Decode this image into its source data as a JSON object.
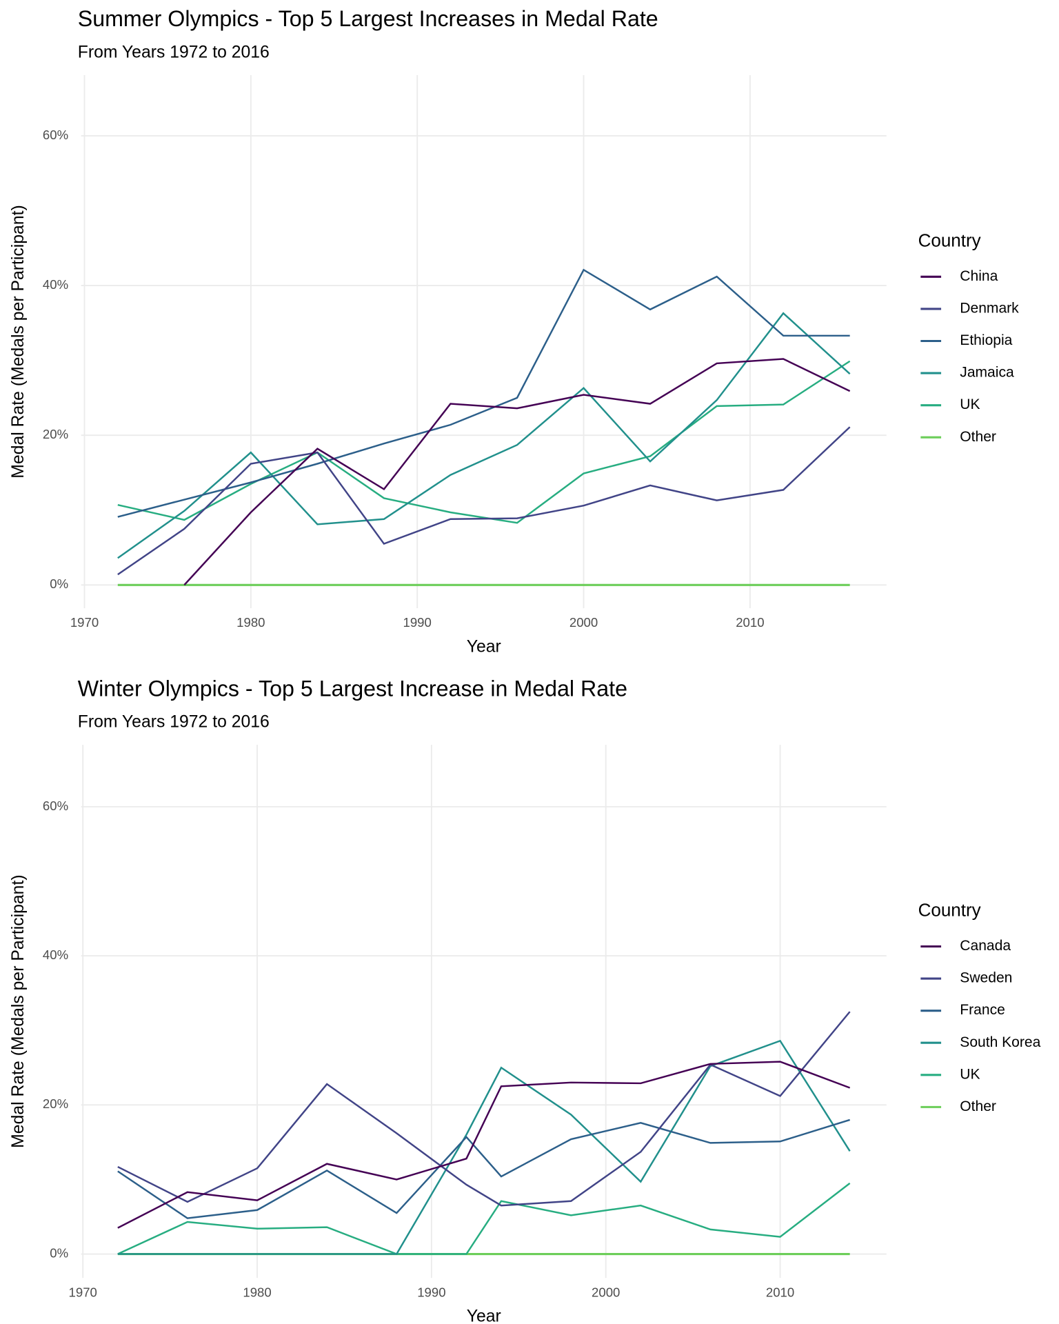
{
  "chart_data": [
    {
      "type": "line",
      "title": "Summer Olympics - Top 5 Largest Increases in Medal Rate",
      "subtitle": "From Years 1972 to 2016",
      "x_label": "Year",
      "y_label": "Medal Rate (Medals per Participant)",
      "legend_title": "Country",
      "legend": "right",
      "grid": true,
      "x": [
        1972,
        1976,
        1980,
        1984,
        1988,
        1992,
        1996,
        2000,
        2004,
        2008,
        2012,
        2016
      ],
      "xlim": [
        1969.8,
        2018.2
      ],
      "xticks": [
        1970,
        1980,
        1990,
        2000,
        2010
      ],
      "ylim": [
        -3.1,
        68.1
      ],
      "yticks": [
        {
          "value": 0,
          "label": "0%"
        },
        {
          "value": 20,
          "label": "20%"
        },
        {
          "value": 40,
          "label": "40%"
        },
        {
          "value": 60,
          "label": "60%"
        }
      ],
      "series": [
        {
          "name": "China",
          "color": "#440154",
          "values": [
            null,
            0,
            9.7,
            18.2,
            12.8,
            24.2,
            23.6,
            25.4,
            24.2,
            29.6,
            30.2,
            25.9
          ]
        },
        {
          "name": "Denmark",
          "color": "#414487",
          "values": [
            1.4,
            7.5,
            16.2,
            17.7,
            5.5,
            8.8,
            8.9,
            10.6,
            13.3,
            11.3,
            12.7,
            21.1
          ]
        },
        {
          "name": "Ethiopia",
          "color": "#2c5f8a",
          "values": [
            9.1,
            11.4,
            13.7,
            16.2,
            18.9,
            21.4,
            25,
            42.1,
            36.8,
            41.2,
            33.3,
            33.3
          ]
        },
        {
          "name": "Jamaica",
          "color": "#21908c",
          "values": [
            3.6,
            9.9,
            17.7,
            8.1,
            8.8,
            14.7,
            18.7,
            26.3,
            16.5,
            24.7,
            36.3,
            28.2
          ]
        },
        {
          "name": "UK",
          "color": "#27ad81",
          "values": [
            10.7,
            8.7,
            13.5,
            17.7,
            11.6,
            9.7,
            8.3,
            14.9,
            17.2,
            23.9,
            24.1,
            29.9
          ]
        },
        {
          "name": "Other",
          "color": "#6cce59",
          "values": [
            0,
            0,
            0,
            0,
            0,
            0,
            0,
            0,
            0,
            0,
            0,
            0
          ]
        }
      ]
    },
    {
      "type": "line",
      "title": "Winter Olympics - Top 5 Largest Increase in Medal Rate",
      "subtitle": "From Years 1972 to 2016",
      "x_label": "Year",
      "y_label": "Medal Rate (Medals per Participant)",
      "legend_title": "Country",
      "legend": "right",
      "grid": true,
      "x": [
        1972,
        1976,
        1980,
        1984,
        1988,
        1992,
        1994,
        1998,
        2002,
        2006,
        2010,
        2014
      ],
      "xlim": [
        1969.9,
        2016.1
      ],
      "xticks": [
        1970,
        1980,
        1990,
        2000,
        2010
      ],
      "ylim": [
        -3.2,
        68.3
      ],
      "yticks": [
        {
          "value": 0,
          "label": "0%"
        },
        {
          "value": 20,
          "label": "20%"
        },
        {
          "value": 40,
          "label": "40%"
        },
        {
          "value": 60,
          "label": "60%"
        }
      ],
      "series": [
        {
          "name": "Canada",
          "color": "#440154",
          "values": [
            3.5,
            8.3,
            7.2,
            12.1,
            10,
            12.8,
            22.5,
            23,
            22.9,
            25.5,
            25.8,
            22.3
          ]
        },
        {
          "name": "Sweden",
          "color": "#414487",
          "values": [
            11.7,
            7,
            11.5,
            22.8,
            16.2,
            9.3,
            6.5,
            7.1,
            13.7,
            25.4,
            21.2,
            32.5
          ]
        },
        {
          "name": "France",
          "color": "#2c5f8a",
          "values": [
            11.1,
            4.8,
            5.9,
            11.2,
            5.5,
            15.7,
            10.4,
            15.4,
            17.6,
            14.9,
            15.1,
            18
          ]
        },
        {
          "name": "South Korea",
          "color": "#21908c",
          "values": [
            0,
            0,
            0,
            0,
            0,
            16,
            25,
            18.7,
            9.7,
            25.2,
            28.6,
            13.8
          ]
        },
        {
          "name": "UK",
          "color": "#27ad81",
          "values": [
            0,
            4.3,
            3.4,
            3.6,
            0,
            0,
            7.1,
            5.2,
            6.5,
            3.3,
            2.3,
            9.5
          ]
        },
        {
          "name": "Other",
          "color": "#6cce59",
          "values": [
            0,
            0,
            0,
            0,
            0,
            0,
            0,
            0,
            0,
            0,
            0,
            0
          ]
        }
      ]
    }
  ]
}
